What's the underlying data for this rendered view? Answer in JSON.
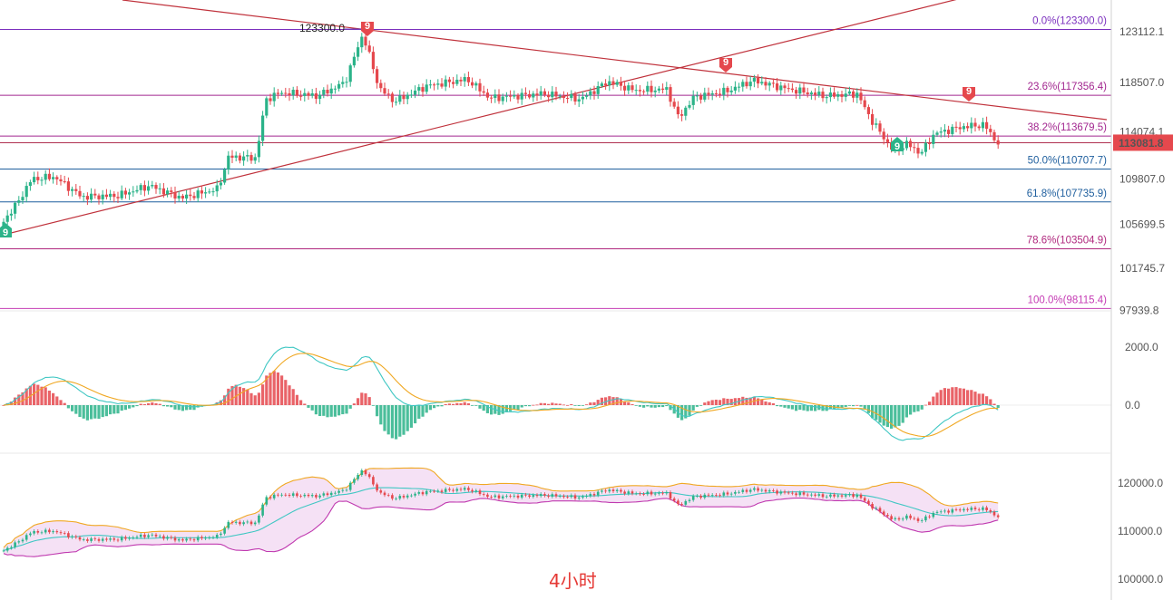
{
  "timeframe_label": "4小时",
  "chart_data": [
    {
      "type": "candlestick",
      "panel": "main",
      "y_axis_ticks": [
        "123112.1",
        "118507.0",
        "114074.1",
        "109807.0",
        "105699.5",
        "101745.7",
        "97939.8"
      ],
      "y_axis_tick_values": [
        123112.1,
        118507.0,
        114074.1,
        109807.0,
        105699.5,
        101745.7,
        97939.8
      ],
      "current_price": {
        "label": "113081.8",
        "value": 113081.8,
        "color": "#e5484d"
      },
      "peak_annotation": {
        "label": "123300.0",
        "value": 123300.0
      },
      "fibonacci": [
        {
          "label": "0.0%(123300.0)",
          "value": 123300.0,
          "color": "#7b2fbe"
        },
        {
          "label": "23.6%(117356.4)",
          "value": 117356.4,
          "color": "#a2268f"
        },
        {
          "label": "38.2%(113679.5)",
          "value": 113679.5,
          "color": "#a2268f"
        },
        {
          "label": "50.0%(110707.7)",
          "value": 110707.7,
          "color": "#1f5f9e"
        },
        {
          "label": "61.8%(107735.9)",
          "value": 107735.9,
          "color": "#1f5f9e"
        },
        {
          "label": "78.6%(103504.9)",
          "value": 103504.9,
          "color": "#b0287e"
        },
        {
          "label": "100.0%(98115.4)",
          "value": 98115.4,
          "color": "#c53bb4"
        }
      ],
      "td_markers": [
        {
          "label": "9",
          "color": "#2bb389"
        },
        {
          "label": "9",
          "color": "#e5484d"
        },
        {
          "label": "9",
          "color": "#e5484d"
        },
        {
          "label": "9",
          "color": "#e5484d"
        },
        {
          "label": "9",
          "color": "#2bb389"
        }
      ],
      "colors": {
        "up": "#2bb389",
        "down": "#e5484d",
        "trendline": "#c0323c"
      }
    },
    {
      "type": "macd",
      "panel": "indicator",
      "y_axis_ticks": [
        "2000.0",
        "0.0"
      ],
      "y_axis_tick_values": [
        2000,
        0
      ],
      "colors": {
        "dif": "#3fc7c3",
        "dea": "#f0a823",
        "hist_up": "#e5484d",
        "hist_down": "#2bb389"
      }
    },
    {
      "type": "bollinger",
      "panel": "lower",
      "y_axis_ticks": [
        "120000.0",
        "110000.0",
        "100000.0"
      ],
      "y_axis_tick_values": [
        120000,
        110000,
        100000
      ],
      "colors": {
        "upper": "#f0a823",
        "mid": "#3fc7c3",
        "lower": "#c03ab0",
        "fill": "#f2d9f3"
      }
    }
  ]
}
